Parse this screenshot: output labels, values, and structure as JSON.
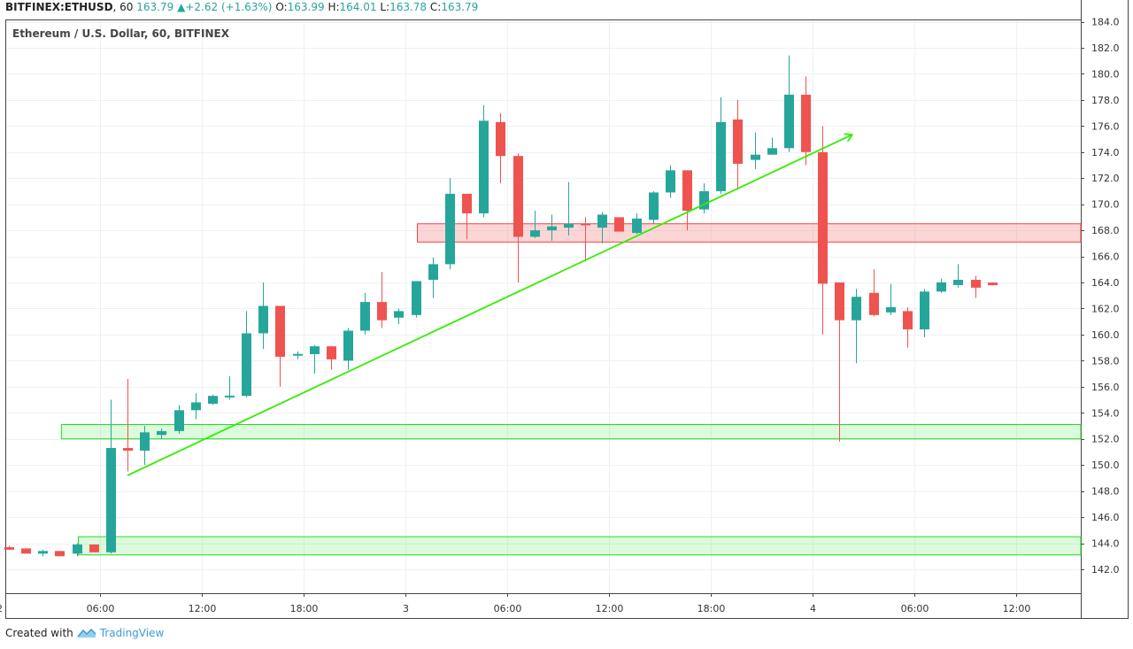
{
  "header": {
    "symbol": "BITFINEX:ETHUSD",
    "interval": "60",
    "last": "163.79",
    "change": "+2.62",
    "change_pct": "(+1.63%)",
    "o_label": "O:",
    "o": "163.99",
    "h_label": "H:",
    "h": "164.01",
    "l_label": "L:",
    "l": "163.78",
    "c_label": "C:",
    "c": "163.79"
  },
  "footer": {
    "created_with": "Created with",
    "brand": "TradingView"
  },
  "colors": {
    "up": "#26a69a",
    "down": "#ef5350",
    "trend": "#33ee00",
    "zone_green": "#22dd22",
    "zone_red": "#ee4444",
    "grid": "#eef1f4"
  },
  "chart_data": {
    "type": "candlestick",
    "title": "Ethereum / U.S. Dollar, 60, BITFINEX",
    "ylim": [
      141,
      184
    ],
    "y_ticks": [
      142,
      144,
      146,
      148,
      150,
      152,
      154,
      156,
      158,
      160,
      162,
      164,
      166,
      168,
      170,
      172,
      174,
      176,
      178,
      180,
      182,
      184
    ],
    "x_ticks": [
      {
        "i": -0.6,
        "label": "2"
      },
      {
        "i": 5.4,
        "label": "06:00"
      },
      {
        "i": 11.4,
        "label": "12:00"
      },
      {
        "i": 17.4,
        "label": "18:00"
      },
      {
        "i": 23.4,
        "label": "3"
      },
      {
        "i": 29.4,
        "label": "06:00"
      },
      {
        "i": 35.4,
        "label": "12:00"
      },
      {
        "i": 41.4,
        "label": "18:00"
      },
      {
        "i": 47.4,
        "label": "4"
      },
      {
        "i": 53.4,
        "label": "06:00"
      },
      {
        "i": 59.4,
        "label": "12:00"
      }
    ],
    "candles": [
      [
        143.7,
        143.8,
        143.5,
        143.5
      ],
      [
        143.6,
        143.6,
        143.2,
        143.2
      ],
      [
        143.2,
        143.5,
        143.0,
        143.4
      ],
      [
        143.4,
        143.4,
        143.0,
        143.0
      ],
      [
        143.2,
        144.0,
        143.0,
        143.9
      ],
      [
        143.9,
        143.9,
        143.3,
        143.3
      ],
      [
        143.3,
        155.0,
        143.2,
        151.3
      ],
      [
        151.3,
        156.6,
        149.5,
        151.1
      ],
      [
        151.1,
        153.0,
        150.0,
        152.5
      ],
      [
        152.3,
        152.8,
        152.0,
        152.6
      ],
      [
        152.6,
        154.6,
        152.4,
        154.2
      ],
      [
        154.2,
        155.5,
        153.5,
        154.8
      ],
      [
        154.7,
        155.4,
        154.6,
        155.3
      ],
      [
        155.2,
        156.8,
        155.0,
        155.3
      ],
      [
        155.3,
        161.8,
        155.2,
        160.1
      ],
      [
        160.1,
        164.0,
        158.9,
        162.2
      ],
      [
        162.2,
        162.2,
        156.0,
        158.3
      ],
      [
        158.4,
        158.7,
        158.1,
        158.5
      ],
      [
        158.5,
        159.2,
        157.0,
        159.1
      ],
      [
        159.1,
        159.1,
        157.3,
        158.1
      ],
      [
        158.0,
        160.5,
        157.3,
        160.3
      ],
      [
        160.3,
        163.2,
        160.0,
        162.5
      ],
      [
        162.5,
        164.8,
        160.5,
        161.1
      ],
      [
        161.3,
        162.0,
        160.8,
        161.8
      ],
      [
        161.5,
        164.1,
        161.3,
        164.1
      ],
      [
        164.2,
        165.9,
        162.8,
        165.4
      ],
      [
        165.4,
        172.0,
        165.0,
        170.8
      ],
      [
        170.8,
        170.8,
        167.3,
        169.3
      ],
      [
        169.3,
        177.6,
        169.0,
        176.4
      ],
      [
        176.3,
        177.0,
        171.6,
        173.7
      ],
      [
        173.7,
        173.9,
        164.0,
        167.5
      ],
      [
        167.5,
        169.5,
        167.4,
        168.0
      ],
      [
        168.0,
        169.2,
        167.2,
        168.3
      ],
      [
        168.2,
        171.7,
        167.6,
        168.5
      ],
      [
        168.5,
        169.0,
        165.6,
        168.4
      ],
      [
        168.2,
        169.4,
        167.0,
        169.2
      ],
      [
        169.0,
        169.0,
        167.9,
        167.9
      ],
      [
        167.8,
        169.3,
        167.7,
        168.9
      ],
      [
        168.8,
        171.0,
        168.5,
        170.9
      ],
      [
        170.9,
        173.0,
        170.5,
        172.6
      ],
      [
        172.6,
        172.6,
        168.0,
        169.5
      ],
      [
        169.6,
        171.6,
        169.3,
        171.0
      ],
      [
        171.0,
        178.2,
        170.8,
        176.3
      ],
      [
        176.5,
        178.0,
        171.1,
        173.1
      ],
      [
        173.4,
        175.5,
        172.7,
        173.8
      ],
      [
        173.8,
        175.1,
        173.8,
        174.3
      ],
      [
        174.3,
        181.4,
        174.0,
        178.4
      ],
      [
        178.4,
        179.8,
        173.0,
        174.0
      ],
      [
        174.0,
        176.0,
        160.0,
        163.9
      ],
      [
        164.0,
        164.0,
        151.8,
        161.1
      ],
      [
        161.1,
        163.5,
        157.8,
        162.9
      ],
      [
        163.2,
        165.0,
        161.4,
        161.5
      ],
      [
        161.7,
        163.9,
        161.5,
        162.1
      ],
      [
        161.8,
        162.1,
        159.0,
        160.4
      ],
      [
        160.4,
        163.5,
        159.8,
        163.3
      ],
      [
        163.3,
        164.3,
        163.2,
        164.0
      ],
      [
        163.8,
        165.4,
        163.6,
        164.2
      ],
      [
        164.2,
        164.5,
        162.8,
        163.6
      ],
      [
        163.99,
        164.01,
        163.78,
        163.79
      ]
    ],
    "zones": [
      {
        "type": "support",
        "from_i": 3.1,
        "y_low": 152.0,
        "y_high": 153.1
      },
      {
        "type": "support",
        "from_i": 4.1,
        "y_low": 143.1,
        "y_high": 144.5
      },
      {
        "type": "resistance",
        "from_i": 24.1,
        "y_low": 167.1,
        "y_high": 168.5
      }
    ],
    "trendline": {
      "from": {
        "i": 7.0,
        "y": 149.2
      },
      "to": {
        "i": 49.7,
        "y": 175.3
      },
      "arrow": true
    }
  }
}
